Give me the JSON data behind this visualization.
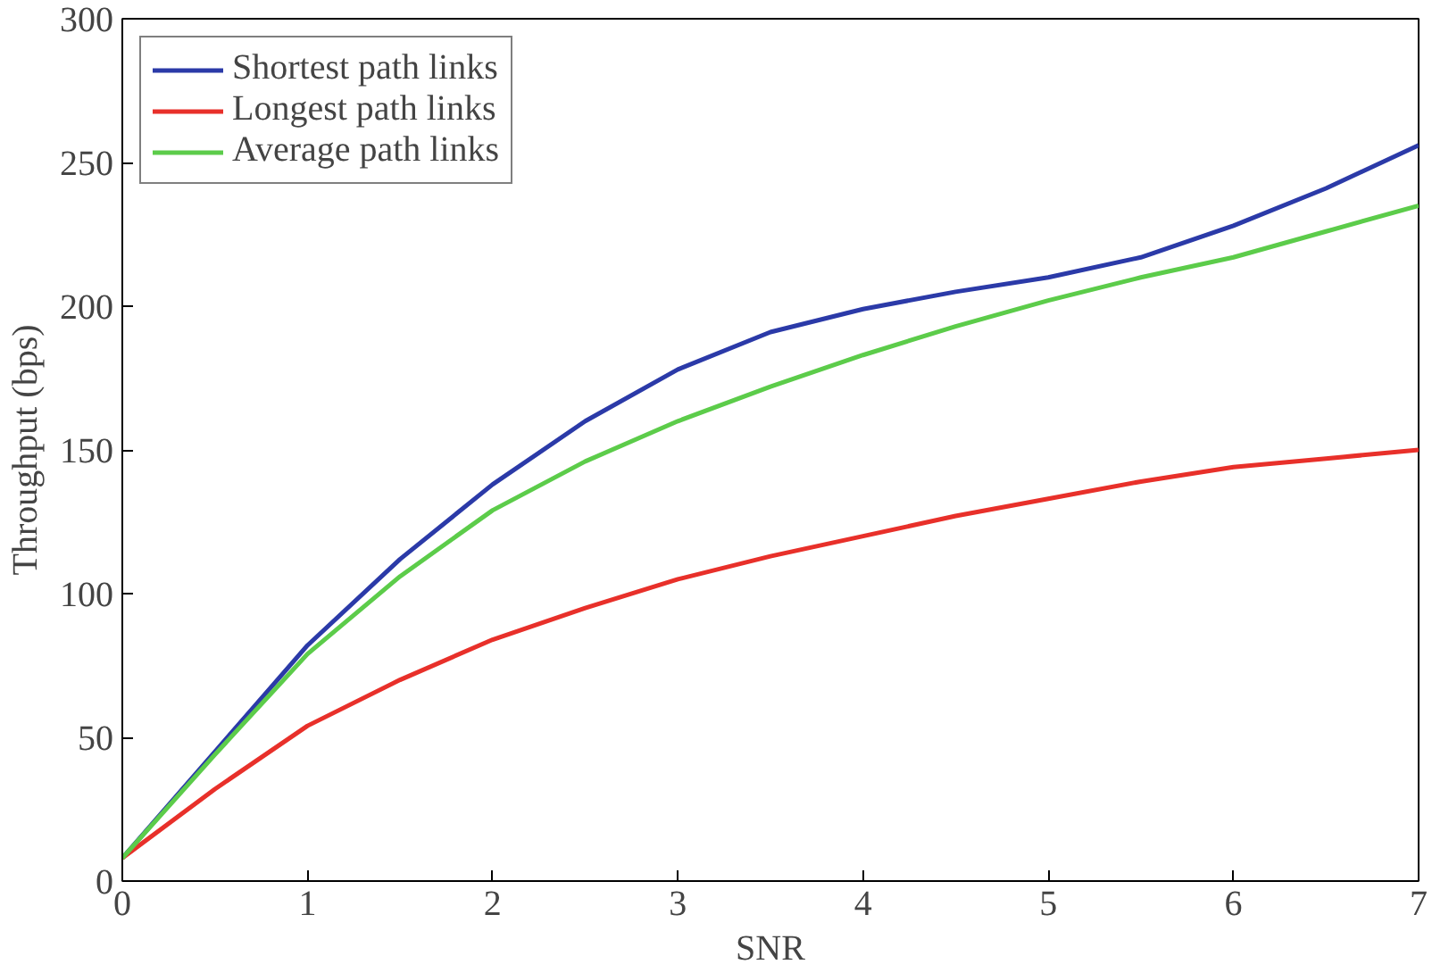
{
  "chart_data": {
    "type": "line",
    "xlabel": "SNR",
    "ylabel": "Throughput (bps)",
    "x": [
      0,
      0.5,
      1,
      1.5,
      2,
      2.5,
      3,
      3.5,
      4,
      4.5,
      5,
      5.5,
      6,
      6.5,
      7
    ],
    "series": [
      {
        "name": "Shortest path links",
        "color": "#2b3aa8",
        "values": [
          8,
          45,
          82,
          112,
          138,
          160,
          178,
          191,
          199,
          205,
          210,
          217,
          228,
          241,
          256
        ]
      },
      {
        "name": "Longest path links",
        "color": "#e8302a",
        "values": [
          8,
          32,
          54,
          70,
          84,
          95,
          105,
          113,
          120,
          127,
          133,
          139,
          144,
          147,
          150
        ]
      },
      {
        "name": "Average path links",
        "color": "#5ccc4a",
        "values": [
          8,
          44,
          79,
          106,
          129,
          146,
          160,
          172,
          183,
          193,
          202,
          210,
          217,
          226,
          235
        ]
      }
    ],
    "xlim": [
      0,
      7
    ],
    "ylim": [
      0,
      300
    ],
    "xticks": [
      0,
      1,
      2,
      3,
      4,
      5,
      6,
      7
    ],
    "yticks": [
      0,
      50,
      100,
      150,
      200,
      250,
      300
    ],
    "grid": false,
    "legend": "top left",
    "marker": "none",
    "line_style": "solid"
  }
}
